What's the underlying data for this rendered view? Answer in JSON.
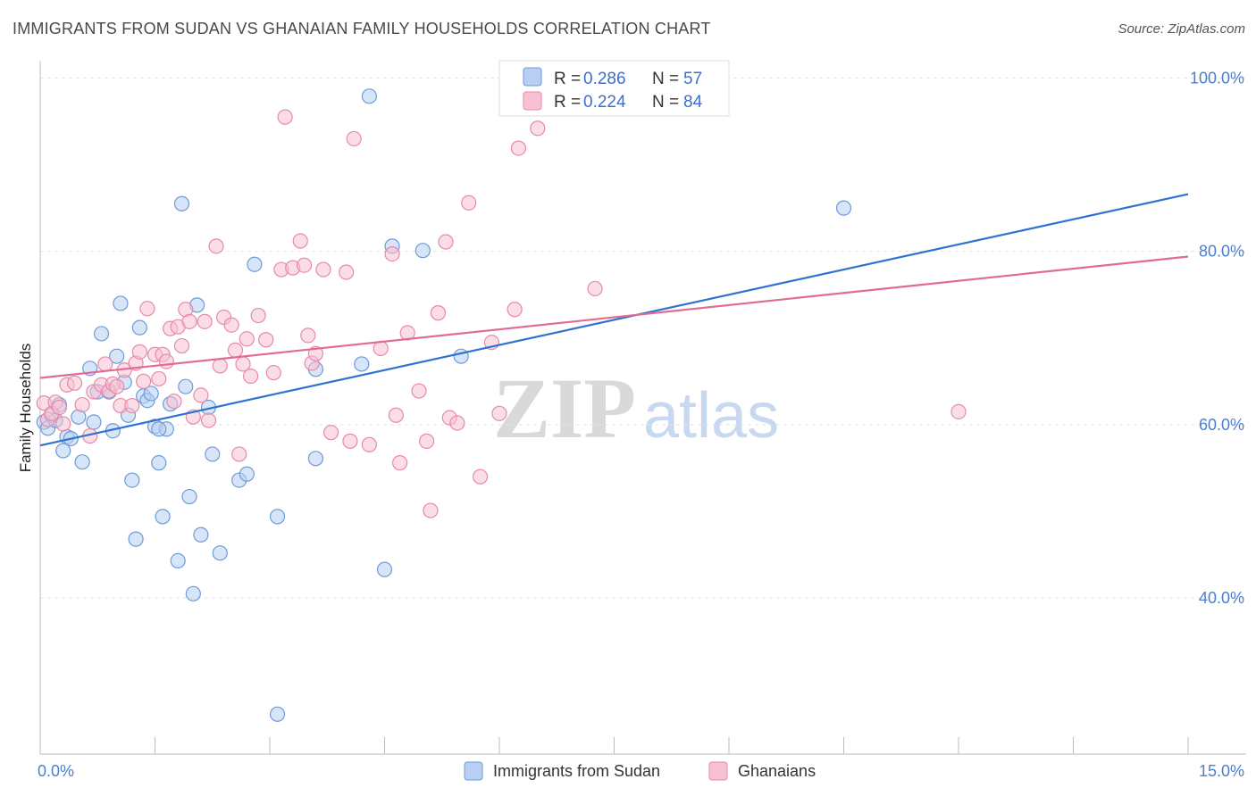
{
  "title": "IMMIGRANTS FROM SUDAN VS GHANAIAN FAMILY HOUSEHOLDS CORRELATION CHART",
  "source": "Source: ZipAtlas.com",
  "watermark": {
    "zip": "ZIP",
    "atlas": "atlas"
  },
  "colors": {
    "blue_fill": "#b7cff3",
    "blue_stroke": "#6f9ad8",
    "blue_line": "#2f72d0",
    "pink_fill": "#f7c1d2",
    "pink_stroke": "#e78aa8",
    "pink_line": "#e06b96",
    "tick_label": "#4a7fd0",
    "grid": "#e3e3e3"
  },
  "legend": {
    "rows": [
      {
        "r_label": "R = ",
        "r_value": "0.286",
        "n_label": "N = ",
        "n_value": "57"
      },
      {
        "r_label": "R = ",
        "r_value": "0.224",
        "n_label": "N = ",
        "n_value": "84"
      }
    ]
  },
  "chart_data": {
    "type": "scatter",
    "title": "IMMIGRANTS FROM SUDAN VS GHANAIAN FAMILY HOUSEHOLDS CORRELATION CHART",
    "xlabel": "",
    "ylabel": "Family Households",
    "xlim": [
      0,
      15
    ],
    "ylim": [
      22,
      102
    ],
    "x_tick_labels": [
      "0.0%",
      "15.0%"
    ],
    "y_ticks": [
      40,
      60,
      80,
      100
    ],
    "y_tick_labels": [
      "40.0%",
      "60.0%",
      "80.0%",
      "100.0%"
    ],
    "grid": true,
    "legend_position": "top-center",
    "series": [
      {
        "name": "Immigrants from Sudan",
        "color": "#6f9ad8",
        "r": 0.286,
        "n": 57,
        "trend": {
          "x": [
            0,
            15
          ],
          "y": [
            57.6,
            86.6
          ]
        },
        "points": [
          [
            0.05,
            60.3
          ],
          [
            0.1,
            59.6
          ],
          [
            0.15,
            61.1
          ],
          [
            0.2,
            60.5
          ],
          [
            0.25,
            62.3
          ],
          [
            0.3,
            57.0
          ],
          [
            0.35,
            58.6
          ],
          [
            0.4,
            58.4
          ],
          [
            0.5,
            60.9
          ],
          [
            0.55,
            55.7
          ],
          [
            0.65,
            66.5
          ],
          [
            0.7,
            60.3
          ],
          [
            0.75,
            63.8
          ],
          [
            0.8,
            70.5
          ],
          [
            0.9,
            63.8
          ],
          [
            0.95,
            59.3
          ],
          [
            1.0,
            67.9
          ],
          [
            1.05,
            74.0
          ],
          [
            1.1,
            64.9
          ],
          [
            1.15,
            61.1
          ],
          [
            1.2,
            53.6
          ],
          [
            1.25,
            46.8
          ],
          [
            1.3,
            71.2
          ],
          [
            1.35,
            63.3
          ],
          [
            1.4,
            62.8
          ],
          [
            1.45,
            63.6
          ],
          [
            1.5,
            59.8
          ],
          [
            1.55,
            55.6
          ],
          [
            1.6,
            49.4
          ],
          [
            1.65,
            59.5
          ],
          [
            1.7,
            62.4
          ],
          [
            1.8,
            44.3
          ],
          [
            1.85,
            85.5
          ],
          [
            1.9,
            64.4
          ],
          [
            1.95,
            51.7
          ],
          [
            2.0,
            40.5
          ],
          [
            2.05,
            73.8
          ],
          [
            2.1,
            47.3
          ],
          [
            2.2,
            62.0
          ],
          [
            2.25,
            56.6
          ],
          [
            2.35,
            45.2
          ],
          [
            2.6,
            53.6
          ],
          [
            2.7,
            54.3
          ],
          [
            2.8,
            78.5
          ],
          [
            3.1,
            49.4
          ],
          [
            3.1,
            26.6
          ],
          [
            3.6,
            66.4
          ],
          [
            3.6,
            56.1
          ],
          [
            4.2,
            67.0
          ],
          [
            4.3,
            97.9
          ],
          [
            4.5,
            43.3
          ],
          [
            4.6,
            80.6
          ],
          [
            5.0,
            80.1
          ],
          [
            5.5,
            67.9
          ],
          [
            10.5,
            85.0
          ],
          [
            0.9,
            63.8
          ],
          [
            1.55,
            59.5
          ]
        ]
      },
      {
        "name": "Ghanaians",
        "color": "#e78aa8",
        "r": 0.224,
        "n": 84,
        "trend": {
          "x": [
            0,
            15
          ],
          "y": [
            65.4,
            79.4
          ]
        },
        "points": [
          [
            0.05,
            62.5
          ],
          [
            0.1,
            60.6
          ],
          [
            0.15,
            61.3
          ],
          [
            0.2,
            62.6
          ],
          [
            0.25,
            62.0
          ],
          [
            0.3,
            60.1
          ],
          [
            0.35,
            64.6
          ],
          [
            0.45,
            64.8
          ],
          [
            0.55,
            62.3
          ],
          [
            0.65,
            58.7
          ],
          [
            0.7,
            63.8
          ],
          [
            0.8,
            64.6
          ],
          [
            0.85,
            67.0
          ],
          [
            0.9,
            63.9
          ],
          [
            0.95,
            64.7
          ],
          [
            1.0,
            64.4
          ],
          [
            1.05,
            62.2
          ],
          [
            1.1,
            66.3
          ],
          [
            1.2,
            62.2
          ],
          [
            1.25,
            67.1
          ],
          [
            1.3,
            68.4
          ],
          [
            1.35,
            65.0
          ],
          [
            1.4,
            73.4
          ],
          [
            1.5,
            68.1
          ],
          [
            1.55,
            65.3
          ],
          [
            1.6,
            68.1
          ],
          [
            1.65,
            67.3
          ],
          [
            1.7,
            71.1
          ],
          [
            1.75,
            62.7
          ],
          [
            1.8,
            71.3
          ],
          [
            1.85,
            69.1
          ],
          [
            1.9,
            73.3
          ],
          [
            1.95,
            71.9
          ],
          [
            2.0,
            60.9
          ],
          [
            2.1,
            63.4
          ],
          [
            2.15,
            71.9
          ],
          [
            2.2,
            60.5
          ],
          [
            2.3,
            80.6
          ],
          [
            2.35,
            66.8
          ],
          [
            2.4,
            72.4
          ],
          [
            2.5,
            71.5
          ],
          [
            2.55,
            68.6
          ],
          [
            2.6,
            56.6
          ],
          [
            2.65,
            67.0
          ],
          [
            2.7,
            69.9
          ],
          [
            2.75,
            65.6
          ],
          [
            2.85,
            72.6
          ],
          [
            2.95,
            69.8
          ],
          [
            3.05,
            66.0
          ],
          [
            3.15,
            77.9
          ],
          [
            3.2,
            95.5
          ],
          [
            3.3,
            78.1
          ],
          [
            3.4,
            81.2
          ],
          [
            3.45,
            78.4
          ],
          [
            3.5,
            70.3
          ],
          [
            3.55,
            67.1
          ],
          [
            3.6,
            68.2
          ],
          [
            3.7,
            77.9
          ],
          [
            3.8,
            59.1
          ],
          [
            4.0,
            77.6
          ],
          [
            4.05,
            58.1
          ],
          [
            4.1,
            93.0
          ],
          [
            4.3,
            57.7
          ],
          [
            4.45,
            68.8
          ],
          [
            4.6,
            79.7
          ],
          [
            4.65,
            61.1
          ],
          [
            4.7,
            55.6
          ],
          [
            4.8,
            70.6
          ],
          [
            4.95,
            63.9
          ],
          [
            5.05,
            58.1
          ],
          [
            5.1,
            50.1
          ],
          [
            5.2,
            72.9
          ],
          [
            5.3,
            81.1
          ],
          [
            5.35,
            60.8
          ],
          [
            5.45,
            60.2
          ],
          [
            5.6,
            85.6
          ],
          [
            5.75,
            54.0
          ],
          [
            5.9,
            69.5
          ],
          [
            6.0,
            61.3
          ],
          [
            6.2,
            73.3
          ],
          [
            6.25,
            91.9
          ],
          [
            6.5,
            94.2
          ],
          [
            7.25,
            75.7
          ],
          [
            12.0,
            61.5
          ]
        ]
      }
    ]
  },
  "bottom_legend": [
    {
      "label": "Immigrants from Sudan"
    },
    {
      "label": "Ghanaians"
    }
  ]
}
